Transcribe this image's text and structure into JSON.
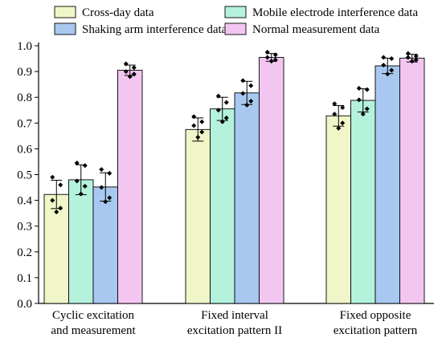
{
  "chart_data": {
    "type": "bar",
    "categories": [
      [
        "Cyclic excitation",
        "and measurement"
      ],
      [
        "Fixed interval",
        "excitation pattern II"
      ],
      [
        "Fixed opposite",
        "excitation pattern"
      ]
    ],
    "series": [
      {
        "name": "Cross-day data",
        "color": "#f1f6c8",
        "values": [
          0.423,
          0.675,
          0.728
        ],
        "errors": [
          0.055,
          0.045,
          0.04
        ],
        "points": [
          [
            0.49,
            0.46,
            0.4,
            0.37,
            0.355
          ],
          [
            0.725,
            0.705,
            0.69,
            0.665,
            0.645
          ],
          [
            0.775,
            0.76,
            0.735,
            0.7,
            0.68
          ]
        ]
      },
      {
        "name": "Mobile electrode interference data",
        "color": "#b4f2dc",
        "values": [
          0.48,
          0.755,
          0.788
        ],
        "errors": [
          0.058,
          0.045,
          0.045
        ],
        "points": [
          [
            0.545,
            0.535,
            0.475,
            0.455,
            0.425
          ],
          [
            0.805,
            0.78,
            0.75,
            0.72,
            0.705
          ],
          [
            0.835,
            0.83,
            0.79,
            0.755,
            0.735
          ]
        ]
      },
      {
        "name": "Shaking arm interference data",
        "color": "#a8c8f0",
        "values": [
          0.452,
          0.817,
          0.922
        ],
        "errors": [
          0.055,
          0.045,
          0.03
        ],
        "points": [
          [
            0.52,
            0.505,
            0.45,
            0.41,
            0.395
          ],
          [
            0.865,
            0.845,
            0.815,
            0.785,
            0.77
          ],
          [
            0.955,
            0.95,
            0.925,
            0.905,
            0.89
          ]
        ]
      },
      {
        "name": "Normal measurement data",
        "color": "#f3c6f1",
        "values": [
          0.905,
          0.955,
          0.952
        ],
        "errors": [
          0.02,
          0.015,
          0.015
        ],
        "points": [
          [
            0.93,
            0.915,
            0.9,
            0.89,
            0.88
          ],
          [
            0.975,
            0.965,
            0.955,
            0.945,
            0.94
          ],
          [
            0.97,
            0.96,
            0.955,
            0.945,
            0.94
          ]
        ]
      }
    ],
    "ylim": [
      0.0,
      1.0
    ],
    "yticks": [
      "0.0",
      "0.1",
      "0.2",
      "0.3",
      "0.4",
      "0.5",
      "0.6",
      "0.7",
      "0.8",
      "0.9",
      "1.0"
    ],
    "title": "",
    "xlabel": "",
    "ylabel": "",
    "grid": false,
    "legend_position": "top"
  }
}
